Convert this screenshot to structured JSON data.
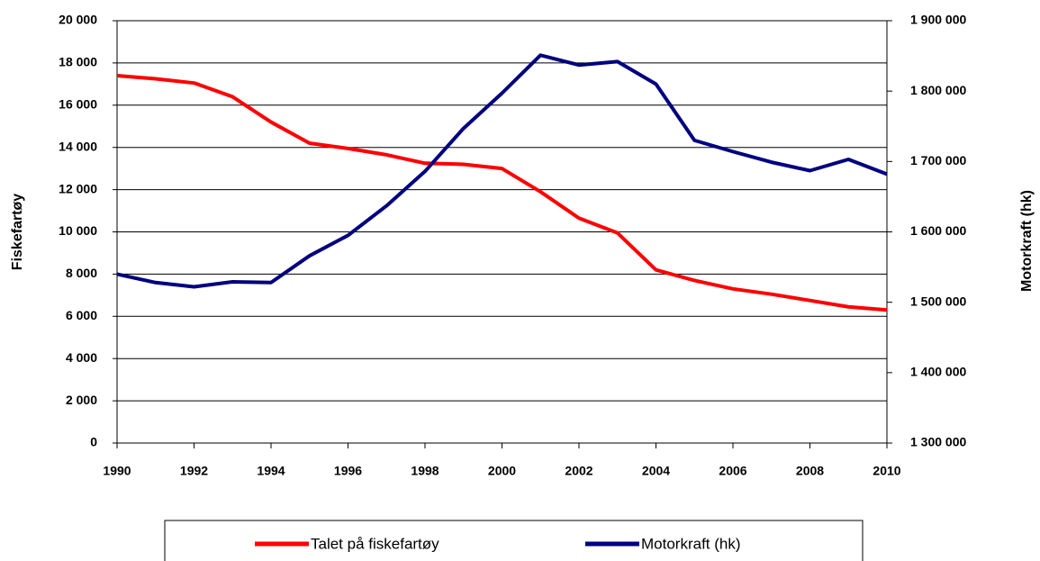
{
  "chart_data": {
    "type": "line",
    "x": [
      1990,
      1991,
      1992,
      1993,
      1994,
      1995,
      1996,
      1997,
      1998,
      1999,
      2000,
      2001,
      2002,
      2003,
      2004,
      2005,
      2006,
      2007,
      2008,
      2009,
      2010
    ],
    "xlim": [
      1990,
      2010
    ],
    "xticks": [
      1990,
      1992,
      1994,
      1996,
      1998,
      2000,
      2002,
      2004,
      2006,
      2008,
      2010
    ],
    "ylabel": "Fiskefartøy",
    "y2label": "Motorkraft (hk)",
    "ylim": [
      0,
      20000
    ],
    "yticks": [
      0,
      {
        "value": 2000,
        "label": "2 000"
      },
      {
        "value": 4000,
        "label": "4 000"
      },
      {
        "value": 6000,
        "label": "6 000"
      },
      {
        "value": 8000,
        "label": "8 000"
      },
      {
        "value": 10000,
        "label": "10 000"
      },
      {
        "value": 12000,
        "label": "12 000"
      },
      {
        "value": 14000,
        "label": "14 000"
      },
      {
        "value": 16000,
        "label": "16 000"
      },
      {
        "value": 18000,
        "label": "18 000"
      },
      {
        "value": 20000,
        "label": "20 000"
      }
    ],
    "y2lim": [
      1300000,
      1900000
    ],
    "y2ticks": [
      {
        "value": 1300000,
        "label": "1 300 000"
      },
      {
        "value": 1400000,
        "label": "1 400 000"
      },
      {
        "value": 1500000,
        "label": "1 500 000"
      },
      {
        "value": 1600000,
        "label": "1 600 000"
      },
      {
        "value": 1700000,
        "label": "1 700 000"
      },
      {
        "value": 1800000,
        "label": "1 800 000"
      },
      {
        "value": 1900000,
        "label": "1 900 000"
      }
    ],
    "grid": true,
    "legend": "bottom",
    "series": [
      {
        "name": "Talet på fiskefartøy",
        "color": "#ff0000",
        "values": [
          17400,
          17250,
          17050,
          16400,
          15200,
          14200,
          13950,
          13650,
          13250,
          13200,
          13000,
          11900,
          10650,
          9950,
          8200,
          7700,
          7300,
          7050,
          6750,
          6450,
          6300
        ]
      },
      {
        "name": "Motorkraft (hk)",
        "color": "#000080",
        "axis": "y2",
        "values": [
          1540000,
          1528000,
          1522000,
          1529000,
          1528000,
          1566000,
          1595000,
          1637000,
          1686000,
          1747000,
          1797000,
          1851000,
          1837000,
          1842000,
          1810000,
          1730000,
          1714000,
          1699000,
          1687000,
          1703000,
          1682000
        ]
      }
    ]
  }
}
